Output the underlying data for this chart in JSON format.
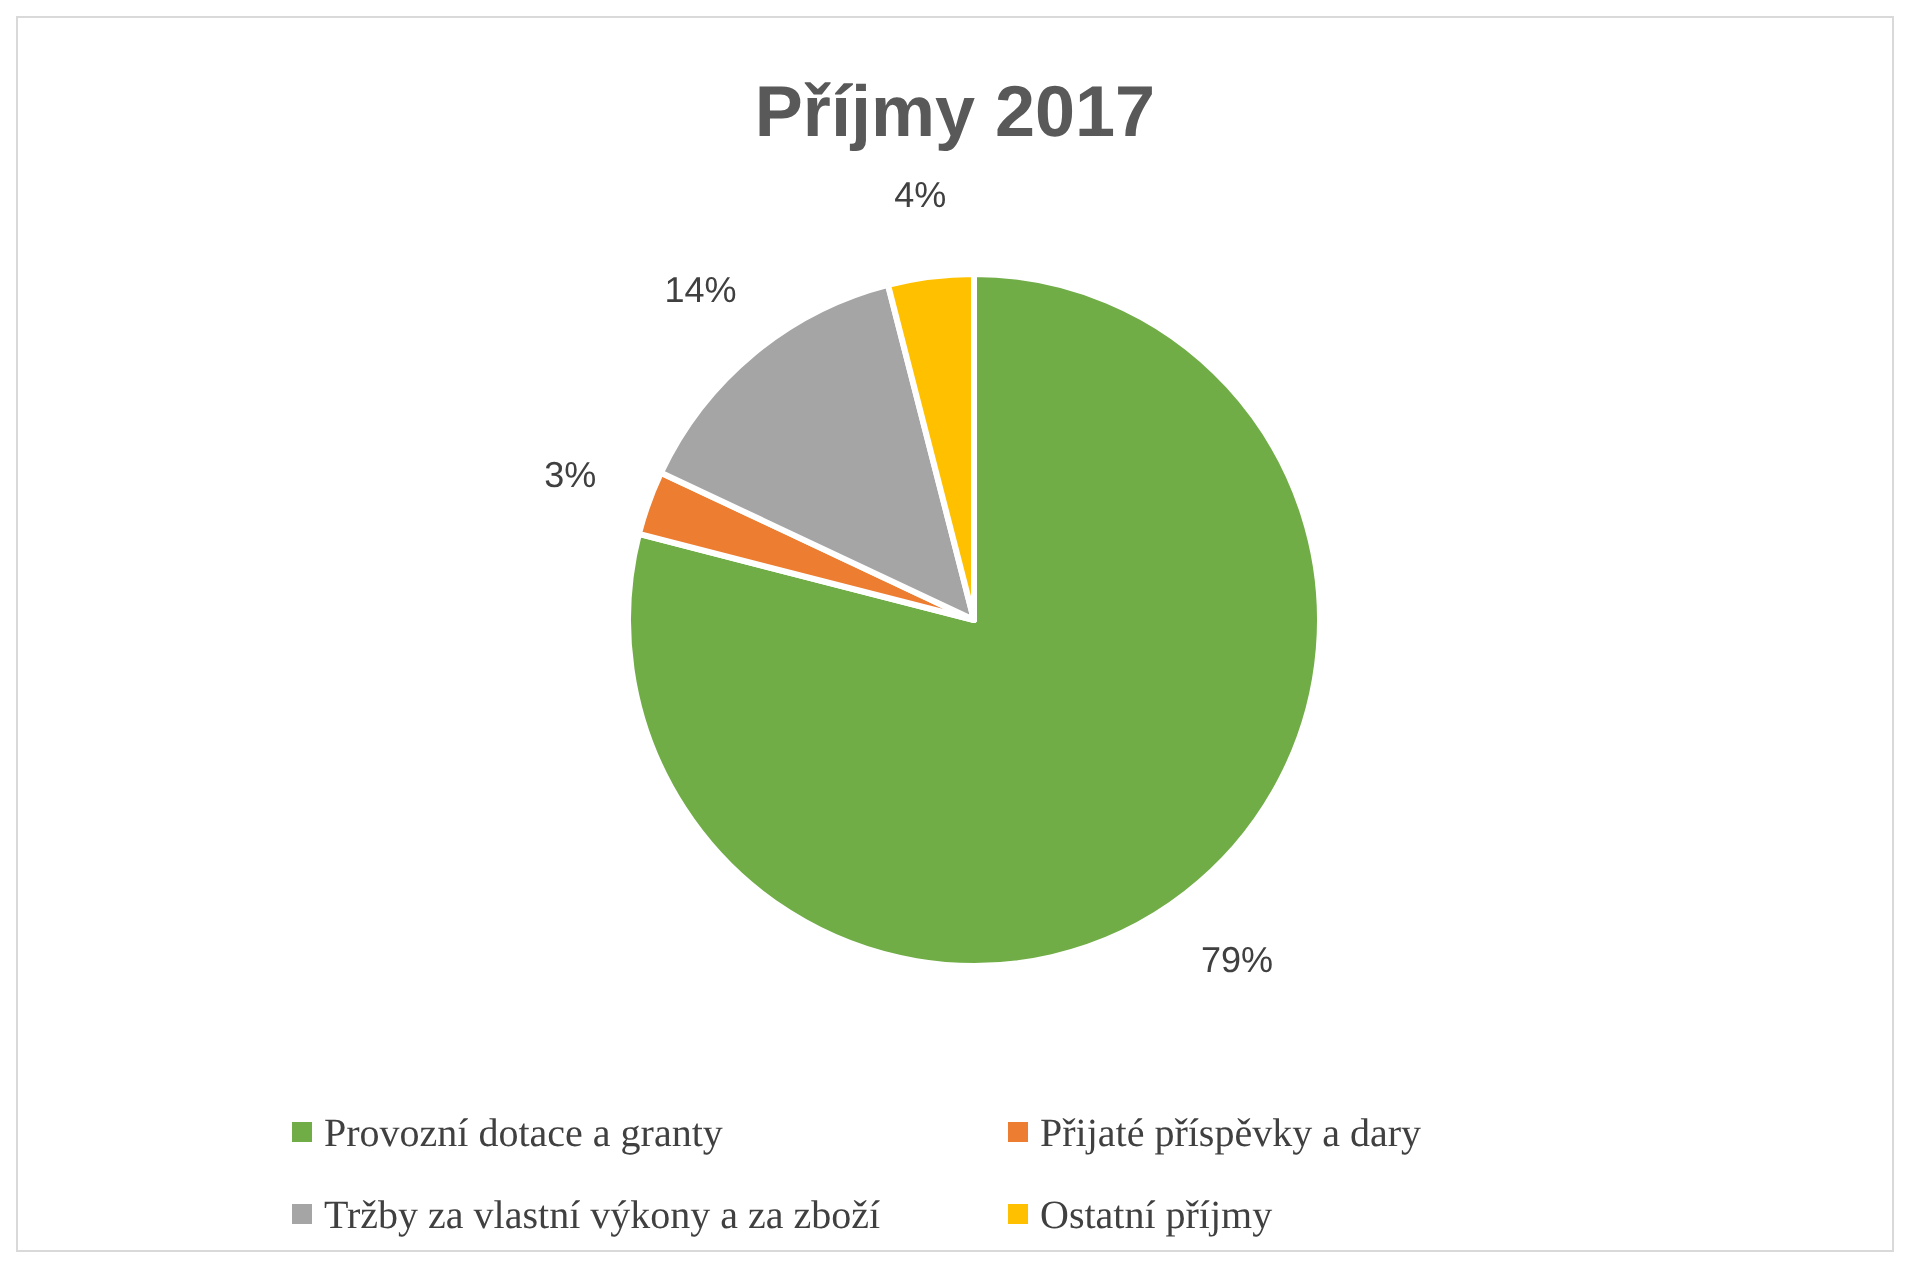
{
  "chart_data": {
    "type": "pie",
    "title": "Příjmy 2017",
    "categories": [
      "Provozní dotace a granty",
      "Přijaté příspěvky a dary",
      "Tržby za vlastní výkony a za zboží",
      "Ostatní příjmy"
    ],
    "values": [
      79,
      3,
      14,
      4
    ],
    "colors": [
      "#70ad47",
      "#ed7d31",
      "#a5a5a5",
      "#ffc000"
    ],
    "value_labels": [
      "79%",
      "3%",
      "14%",
      "4%"
    ],
    "legend": "bottom"
  }
}
